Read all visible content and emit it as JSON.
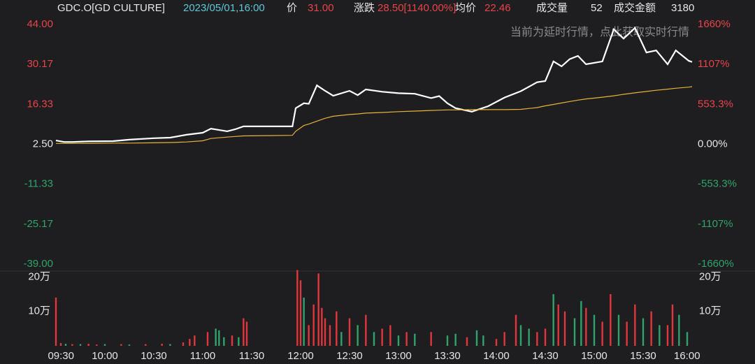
{
  "header": {
    "symbol": "GDC.O[GD CULTURE]",
    "datetime": "2023/05/01,16:00",
    "price_label": "价",
    "price": "31.00",
    "change_label": "涨跌",
    "change": "28.50[1140.00%]",
    "avg_label": "均价",
    "avg": "22.46",
    "volume_label": "成交量",
    "volume": "52",
    "amount_label": "成交金额",
    "amount": "3180"
  },
  "notice": "当前为延时行情，点此获取实时行情",
  "chart_data": [
    {
      "type": "line",
      "x": [
        0,
        5,
        10,
        20,
        35,
        45,
        60,
        70,
        80,
        90,
        95,
        105,
        110,
        115,
        130,
        145,
        147,
        152,
        155,
        160,
        165,
        170,
        180,
        185,
        190,
        200,
        210,
        220,
        230,
        235,
        240,
        245,
        255,
        265,
        275,
        285,
        295,
        300,
        305,
        310,
        315,
        320,
        325,
        335,
        342,
        348,
        355,
        362,
        368,
        375,
        380,
        388,
        390
      ],
      "series": [
        {
          "color": "#ffffff",
          "values": [
            3.8,
            3.3,
            3.3,
            3.5,
            3.6,
            4.1,
            4.6,
            4.8,
            5.8,
            6.5,
            7.9,
            7.0,
            7.7,
            8.7,
            8.7,
            8.7,
            15.0,
            16.7,
            16.5,
            22.9,
            21.0,
            19.3,
            21.0,
            19.5,
            21.5,
            20.7,
            20.2,
            20.0,
            18.5,
            19.2,
            16.7,
            15.0,
            13.8,
            15.7,
            18.7,
            20.9,
            24.0,
            24.4,
            31.2,
            29.5,
            32.0,
            33.1,
            30.2,
            31.2,
            42.3,
            39.1,
            42.8,
            34.3,
            35.0,
            30.2,
            35.0,
            31.4,
            31.0
          ]
        },
        {
          "color": "#e8b23a",
          "values": [
            2.8,
            2.8,
            2.8,
            2.8,
            2.9,
            2.9,
            3.0,
            3.1,
            3.3,
            3.7,
            4.5,
            5.0,
            5.2,
            5.4,
            5.5,
            5.6,
            7.0,
            9.0,
            9.5,
            10.5,
            11.5,
            12.2,
            12.8,
            13.0,
            13.3,
            13.5,
            13.8,
            14.0,
            14.2,
            14.3,
            14.4,
            14.4,
            14.5,
            14.5,
            14.5,
            14.6,
            15.2,
            15.8,
            16.3,
            16.8,
            17.3,
            17.8,
            18.2,
            18.8,
            19.3,
            19.8,
            20.3,
            20.8,
            21.2,
            21.6,
            21.9,
            22.3,
            22.46
          ]
        }
      ],
      "xlim": [
        0,
        390
      ],
      "ylim": [
        -39,
        44
      ],
      "yticks": [
        {
          "value": 44,
          "label": "44.00"
        },
        30.17,
        16.33,
        {
          "value": 2.5,
          "label": "2.50"
        },
        -11.33,
        -25.17,
        {
          "value": -39,
          "label": "-39.00"
        }
      ],
      "y2lim": [
        -1660,
        1660
      ],
      "y2ticks": [
        {
          "value": 1660,
          "label": "1660%"
        },
        {
          "value": 1107,
          "label": "1107%"
        },
        {
          "value": 553.3,
          "label": "553.3%"
        },
        {
          "value": 0,
          "label": "0.00%"
        },
        {
          "value": -553.3,
          "label": "-553.3%"
        },
        {
          "value": -1107,
          "label": "-1107%"
        },
        {
          "value": -1660,
          "label": "-1660%"
        }
      ]
    },
    {
      "type": "bar",
      "x": [
        0,
        3,
        6,
        10,
        15,
        20,
        25,
        30,
        40,
        45,
        55,
        65,
        70,
        78,
        82,
        85,
        93,
        98,
        100,
        103,
        108,
        112,
        115,
        117,
        148,
        150,
        152,
        155,
        158,
        161,
        163,
        165,
        168,
        172,
        175,
        180,
        185,
        190,
        195,
        200,
        205,
        210,
        215,
        220,
        230,
        240,
        245,
        252,
        258,
        262,
        270,
        275,
        282,
        285,
        290,
        295,
        300,
        305,
        308,
        312,
        318,
        322,
        325,
        330,
        335,
        340,
        345,
        350,
        355,
        360,
        365,
        370,
        375,
        378,
        382,
        387
      ],
      "values": [
        140000,
        8000,
        6000,
        5000,
        5000,
        6000,
        4000,
        5000,
        5000,
        4000,
        5000,
        6000,
        5000,
        10000,
        20000,
        30000,
        40000,
        50000,
        45000,
        25000,
        30000,
        25000,
        80000,
        70000,
        220000,
        190000,
        140000,
        60000,
        120000,
        210000,
        110000,
        80000,
        60000,
        100000,
        40000,
        80000,
        60000,
        90000,
        40000,
        50000,
        60000,
        30000,
        40000,
        35000,
        40000,
        30000,
        35000,
        25000,
        45000,
        30000,
        20000,
        40000,
        90000,
        60000,
        50000,
        40000,
        50000,
        150000,
        120000,
        100000,
        80000,
        130000,
        110000,
        90000,
        70000,
        150000,
        90000,
        70000,
        120000,
        80000,
        100000,
        60000,
        60000,
        120000,
        90000,
        40000
      ],
      "colors": [
        "#e0363c",
        "#e0363c",
        "#2fa36b",
        "#e0363c",
        "#2fa36b",
        "#e0363c",
        "#e0363c",
        "#2fa36b",
        "#e0363c",
        "#2fa36b",
        "#e0363c",
        "#e0363c",
        "#2fa36b",
        "#e0363c",
        "#e0363c",
        "#e0363c",
        "#e0363c",
        "#2fa36b",
        "#2fa36b",
        "#2fa36b",
        "#e0363c",
        "#2fa36b",
        "#e0363c",
        "#e0363c",
        "#e0363c",
        "#e0363c",
        "#2fa36b",
        "#e0363c",
        "#e0363c",
        "#e0363c",
        "#e0363c",
        "#e0363c",
        "#e0363c",
        "#e0363c",
        "#2fa36b",
        "#e0363c",
        "#2fa36b",
        "#e0363c",
        "#2fa36b",
        "#e0363c",
        "#e0363c",
        "#2fa36b",
        "#e0363c",
        "#2fa36b",
        "#e0363c",
        "#2fa36b",
        "#2fa36b",
        "#e0363c",
        "#2fa36b",
        "#2fa36b",
        "#e0363c",
        "#e0363c",
        "#e0363c",
        "#2fa36b",
        "#2fa36b",
        "#e0363c",
        "#e0363c",
        "#2fa36b",
        "#e0363c",
        "#e0363c",
        "#2fa36b",
        "#2fa36b",
        "#e0363c",
        "#2fa36b",
        "#e0363c",
        "#e0363c",
        "#2fa36b",
        "#e0363c",
        "#e0363c",
        "#2fa36b",
        "#e0363c",
        "#2fa36b",
        "#e0363c",
        "#e0363c",
        "#2fa36b",
        "#2fa36b"
      ],
      "xlim": [
        0,
        390
      ],
      "ylim": [
        0,
        225000
      ],
      "yticks": [
        {
          "value": 200000,
          "label": "20万"
        },
        {
          "value": 100000,
          "label": "10万"
        }
      ],
      "xticks": [
        {
          "value": 0,
          "label": "09:30"
        },
        {
          "value": 30,
          "label": "10:00"
        },
        {
          "value": 60,
          "label": "10:30"
        },
        {
          "value": 90,
          "label": "11:00"
        },
        {
          "value": 120,
          "label": "11:30"
        },
        {
          "value": 150,
          "label": "12:00"
        },
        {
          "value": 180,
          "label": "12:30"
        },
        {
          "value": 210,
          "label": "13:00"
        },
        {
          "value": 240,
          "label": "13:30"
        },
        {
          "value": 270,
          "label": "14:00"
        },
        {
          "value": 300,
          "label": "14:30"
        },
        {
          "value": 330,
          "label": "15:00"
        },
        {
          "value": 360,
          "label": "15:30"
        },
        {
          "value": 390,
          "label": "16:00"
        }
      ]
    }
  ]
}
